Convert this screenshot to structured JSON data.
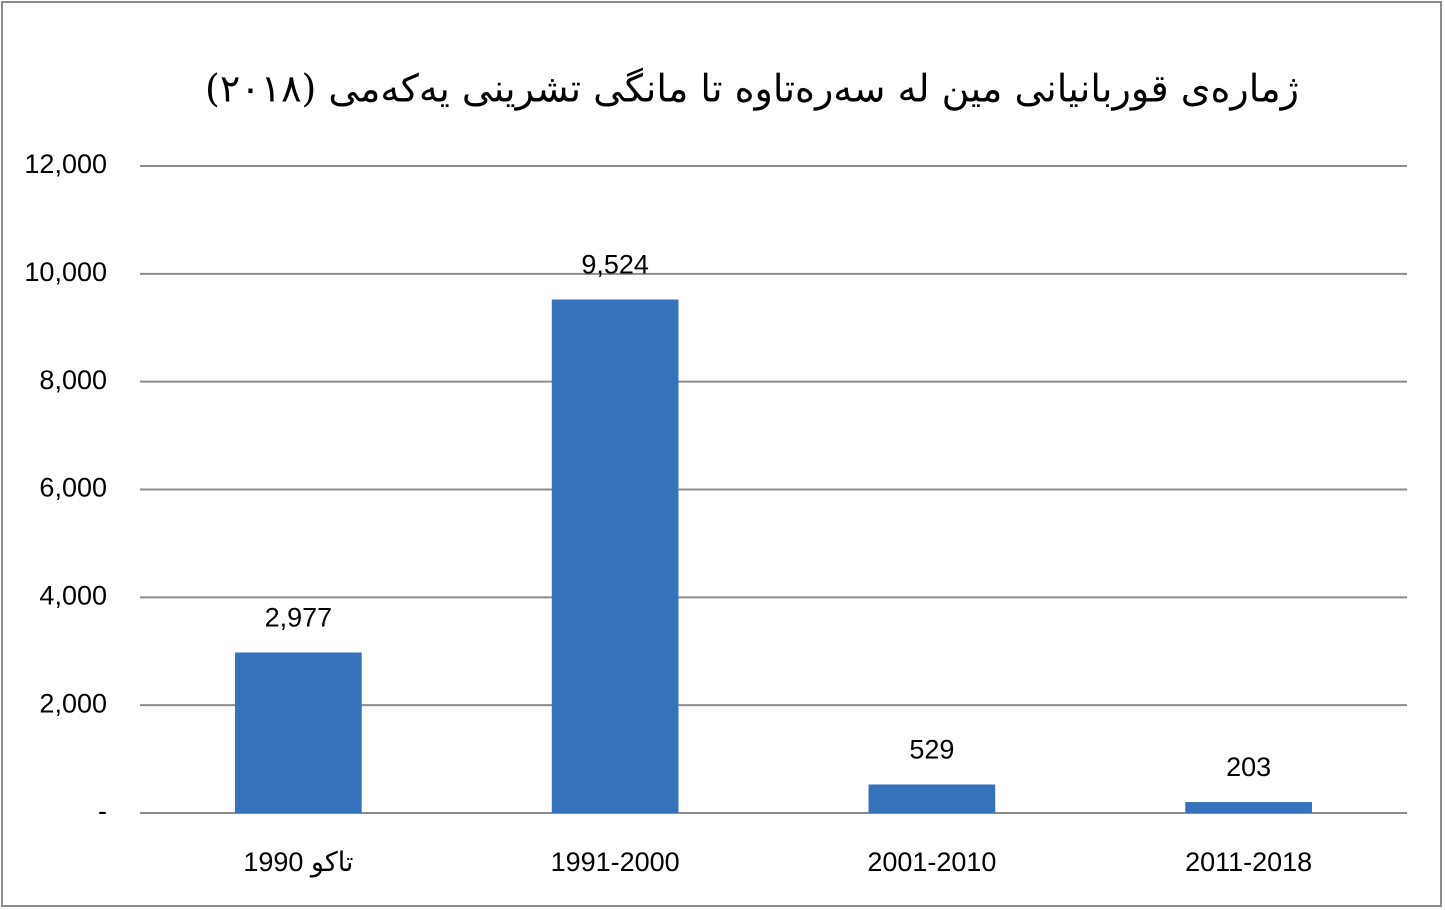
{
  "chart_data": {
    "type": "bar",
    "title": "ژمارەی قوربانیانی مین لە سەرەتاوە تا مانگی تشرینی یەکەمی (٢٠١٨)",
    "categories": [
      "1990 تاکو",
      "1991-2000",
      "2001-2010",
      "2011-2018"
    ],
    "values": [
      2977,
      9524,
      529,
      203
    ],
    "value_labels": [
      "2,977",
      "9,524",
      "529",
      "203"
    ],
    "color": "#3671bb",
    "ylim": [
      0,
      12000
    ],
    "yticks": [
      {
        "value": 0,
        "label": "-"
      },
      {
        "value": 2000,
        "label": "2,000"
      },
      {
        "value": 4000,
        "label": "4,000"
      },
      {
        "value": 6000,
        "label": "6,000"
      },
      {
        "value": 8000,
        "label": "8,000"
      },
      {
        "value": 10000,
        "label": "10,000"
      },
      {
        "value": 12000,
        "label": "12,000"
      }
    ],
    "grid": true
  }
}
